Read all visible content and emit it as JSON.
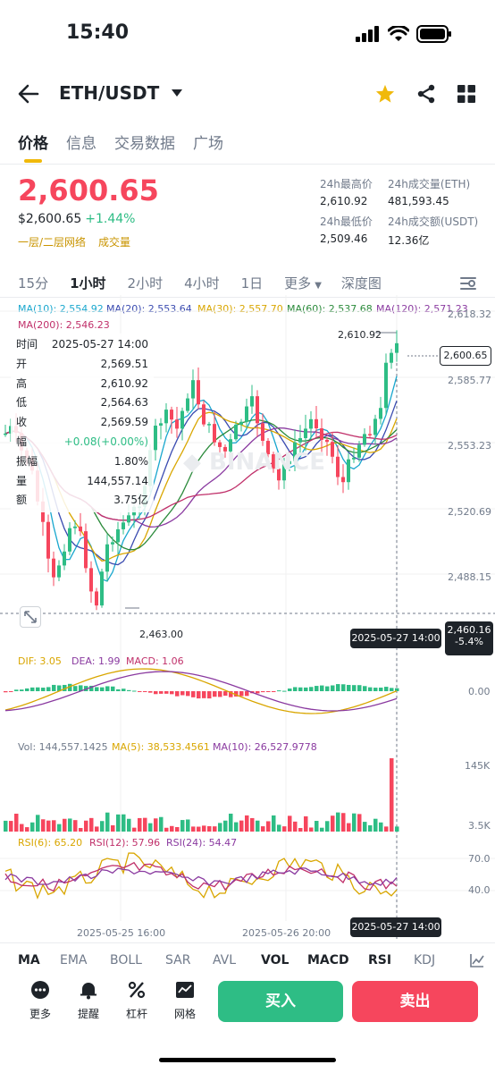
{
  "status": {
    "time": "15:40"
  },
  "header": {
    "pair": "ETH/USDT"
  },
  "tabs": [
    "价格",
    "信息",
    "交易数据",
    "广场"
  ],
  "price": {
    "last": "2,600.65",
    "fiat": "$2,600.65",
    "change": "+1.44%",
    "links": [
      "一层/二层网络",
      "成交量"
    ]
  },
  "stats": {
    "high_label": "24h最高价",
    "high": "2,610.92",
    "vol_eth_label": "24h成交量(ETH)",
    "vol_eth": "481,593.45",
    "low_label": "24h最低价",
    "low": "2,509.46",
    "vol_usdt_label": "24h成交额(USDT)",
    "vol_usdt": "12.36亿"
  },
  "intervals": [
    "15分",
    "1小时",
    "2小时",
    "4小时",
    "1日",
    "更多",
    "深度图"
  ],
  "ma": {
    "ma10": "MA(10): 2,554.92",
    "ma20": "MA(20): 2,553.64",
    "ma30": "MA(30): 2,557.70",
    "ma60": "MA(60): 2,537.68",
    "ma120": "MA(120): 2,571.23",
    "ma200": "MA(200): 2,546.23"
  },
  "tooltip": {
    "rows": [
      {
        "k": "时间",
        "v": "2025-05-27 14:00"
      },
      {
        "k": "开",
        "v": "2,569.51"
      },
      {
        "k": "高",
        "v": "2,610.92"
      },
      {
        "k": "低",
        "v": "2,564.63"
      },
      {
        "k": "收",
        "v": "2,569.59"
      },
      {
        "k": "幅",
        "v": "+0.08(+0.00%)"
      },
      {
        "k": "振幅",
        "v": "1.80%"
      },
      {
        "k": "量",
        "v": "144,557.14"
      },
      {
        "k": "额",
        "v": "3.75亿"
      }
    ]
  },
  "axis": {
    "price_ticks": [
      "2,618.32",
      "2,585.77",
      "2,553.23",
      "2,520.69",
      "2,488.15"
    ],
    "high_marker": "2,610.92",
    "low_marker": "2,463.00",
    "last_price_tag": "2,600.65",
    "cursor_price": "2,460.16",
    "cursor_pct": "-5.4%",
    "cursor_time": "2025-05-27 14:00",
    "macd_zero": "0.00",
    "vol_ticks": [
      "145K",
      "3.5K"
    ],
    "rsi_ticks": [
      "70.0",
      "40.0"
    ],
    "time_labels": [
      "2025-05-25 16:00",
      "2025-05-26 20:00"
    ],
    "cursor_time_bottom": "2025-05-27 14:00"
  },
  "macd": {
    "dif": "DIF: 3.05",
    "dea": "DEA: 1.99",
    "macd": "MACD: 1.06"
  },
  "vol": {
    "vol": "Vol: 144,557.1425",
    "ma5": "MA(5): 38,533.4561",
    "ma10": "MA(10): 26,527.9778"
  },
  "rsi": {
    "r6": "RSI(6): 65.20",
    "r12": "RSI(12): 57.96",
    "r24": "RSI(24): 54.47"
  },
  "indicator_tabs": [
    "MA",
    "EMA",
    "BOLL",
    "SAR",
    "AVL",
    "VOL",
    "MACD",
    "RSI",
    "KDJ"
  ],
  "actions": [
    "更多",
    "提醒",
    "杠杆",
    "网格"
  ],
  "buy_label": "买入",
  "sell_label": "卖出",
  "colors": {
    "up": "#2ebd85",
    "down": "#f6465d",
    "accent": "#f0b90b"
  },
  "chart_data": {
    "type": "candlestick",
    "interval": "1小时",
    "y_range": [
      2463.0,
      2618.32
    ],
    "last_price": 2600.65,
    "high": 2610.92,
    "low": 2463.0,
    "volume_last": 144557.1425,
    "rsi": {
      "rsi6": 65.2,
      "rsi12": 57.96,
      "rsi24": 54.47
    },
    "macd": {
      "dif": 3.05,
      "dea": 1.99,
      "macd": 1.06
    }
  }
}
